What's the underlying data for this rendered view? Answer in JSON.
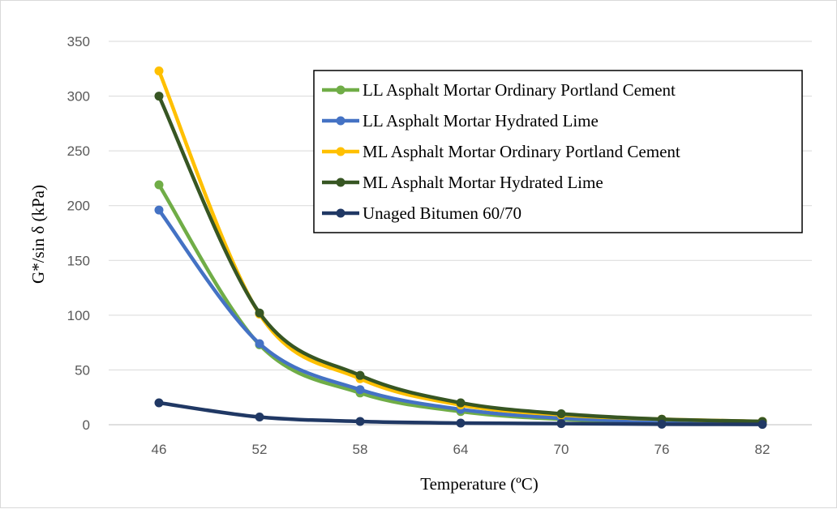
{
  "chart_data": {
    "type": "line",
    "title": "",
    "xlabel": "Temperature (ºC)",
    "ylabel": "G*/sin δ (kPa)",
    "categories": [
      "46",
      "52",
      "58",
      "64",
      "70",
      "76",
      "82"
    ],
    "ylim": [
      0,
      350
    ],
    "yticks": [
      0,
      50,
      100,
      150,
      200,
      250,
      300,
      350
    ],
    "grid": "horizontal",
    "legend_position": "top-right",
    "smooth": true,
    "series": [
      {
        "name": "LL Asphalt Mortar Ordinary Portland Cement",
        "color": "#70ad47",
        "values": [
          219,
          73,
          29,
          12,
          5,
          3,
          2
        ]
      },
      {
        "name": "LL Asphalt Mortar Hydrated Lime",
        "color": "#4472c4",
        "values": [
          196,
          74,
          32,
          14,
          6,
          3,
          2
        ]
      },
      {
        "name": "ML Asphalt Mortar Ordinary Portland Cement",
        "color": "#ffc000",
        "values": [
          323,
          101,
          42,
          18,
          9,
          5,
          3
        ]
      },
      {
        "name": "ML Asphalt Mortar Hydrated Lime",
        "color": "#375623",
        "values": [
          300,
          102,
          45,
          20,
          10,
          5,
          3
        ]
      },
      {
        "name": "Unaged Bitumen 60/70",
        "color": "#203864",
        "values": [
          20,
          7,
          3,
          1.5,
          1,
          0.5,
          0.3
        ]
      }
    ]
  }
}
